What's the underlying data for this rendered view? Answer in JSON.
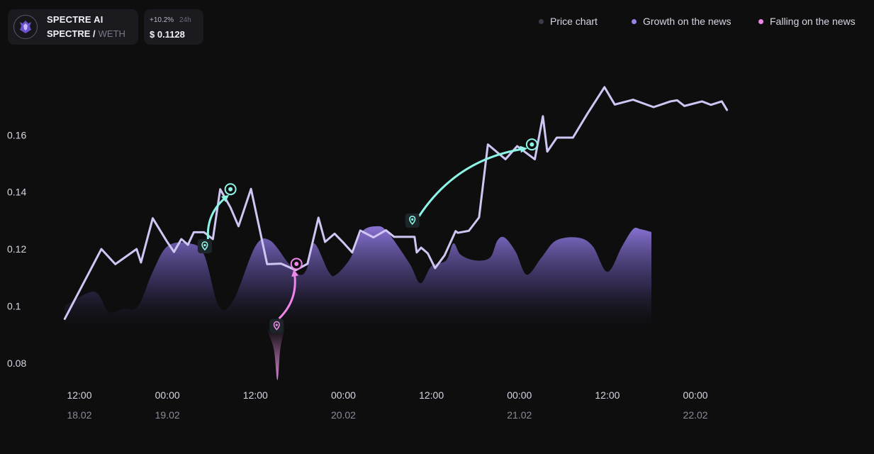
{
  "token": {
    "name": "SPECTRE AI",
    "base": "SPECTRE /",
    "quote": "WETH",
    "logo_icon": "wolf-shield-icon"
  },
  "price": {
    "change": "+10.2%",
    "period": "24h",
    "value": "$ 0.1128"
  },
  "legend": [
    {
      "label": "Price chart",
      "color": "#3d3a4c"
    },
    {
      "label": "Growth on the news",
      "color": "#9a82ea"
    },
    {
      "label": "Falling on the news",
      "color": "#ee86e8"
    }
  ],
  "colors": {
    "price_line": "#cfc6f4",
    "growth_arrow": "#8ef5e6",
    "fall_arrow": "#ee86e8",
    "area": "#8f78de",
    "dip": "#e58ee0"
  },
  "chart_data": {
    "type": "line",
    "title": "",
    "xlabel": "",
    "ylabel": "",
    "ylim": [
      0.07,
      0.18
    ],
    "xlim": [
      0,
      104
    ],
    "y_ticks": [
      0.16,
      0.14,
      0.12,
      0.1,
      0.08
    ],
    "y_tick_labels": [
      "0.16",
      "0.14",
      "0.12",
      "0.1",
      "0.08"
    ],
    "x_ticks": [
      {
        "x": 0,
        "time": "12:00",
        "date": "18.02"
      },
      {
        "x": 12,
        "time": "00:00",
        "date": "19.02"
      },
      {
        "x": 24,
        "time": "12:00",
        "date": ""
      },
      {
        "x": 36,
        "time": "00:00",
        "date": "20.02"
      },
      {
        "x": 48,
        "time": "12:00",
        "date": ""
      },
      {
        "x": 60,
        "time": "00:00",
        "date": "21.02"
      },
      {
        "x": 72,
        "time": "12:00",
        "date": ""
      },
      {
        "x": 84,
        "time": "00:00",
        "date": "22.02"
      }
    ],
    "grid": false,
    "legend_position": "top-right",
    "series": [
      {
        "name": "Price chart",
        "x": [
          -2.0,
          3.0,
          4.9,
          7.8,
          8.4,
          10.0,
          11.9,
          12.9,
          13.9,
          14.8,
          15.6,
          17.0,
          18.2,
          19.2,
          20.6,
          21.7,
          23.4,
          25.6,
          27.5,
          29.5,
          31.1,
          32.6,
          33.5,
          34.8,
          35.9,
          37.2,
          38.3,
          40.1,
          41.8,
          42.9,
          45.7,
          46.0,
          46.6,
          47.5,
          48.5,
          49.8,
          51.3,
          51.6,
          53.1,
          54.5,
          55.7,
          58.1,
          59.7,
          62.1,
          63.2,
          63.8,
          65.1,
          67.3,
          69.3,
          71.6,
          73.0,
          75.5,
          78.3,
          80.6,
          81.5,
          82.5,
          84.9,
          86.1,
          87.6,
          88.3
        ],
        "y": [
          0.0955,
          0.12,
          0.1147,
          0.12,
          0.1153,
          0.1308,
          0.1228,
          0.119,
          0.1235,
          0.1215,
          0.1259,
          0.1259,
          0.1235,
          0.141,
          0.1346,
          0.128,
          0.1411,
          0.1147,
          0.1149,
          0.1126,
          0.1148,
          0.131,
          0.1225,
          0.1254,
          0.1225,
          0.1188,
          0.1265,
          0.1241,
          0.1266,
          0.1243,
          0.1243,
          0.1188,
          0.1205,
          0.1185,
          0.1133,
          0.1178,
          0.1263,
          0.1257,
          0.1264,
          0.1311,
          0.1567,
          0.1515,
          0.1561,
          0.1515,
          0.1666,
          0.1542,
          0.1591,
          0.1591,
          0.1676,
          0.1768,
          0.1707,
          0.1724,
          0.1698,
          0.1718,
          0.1722,
          0.1702,
          0.1718,
          0.1706,
          0.1718,
          0.1688
        ]
      },
      {
        "name": "Growth on the news",
        "x": [
          -2,
          2,
          4,
          6,
          8,
          10,
          12,
          15,
          17,
          19,
          21,
          24,
          26,
          28.5,
          30,
          31,
          32,
          34,
          35,
          37,
          38.5,
          40.5,
          42,
          45,
          46.5,
          48,
          50,
          51,
          52,
          54,
          56,
          57,
          58,
          59.5,
          61,
          63,
          65,
          68,
          70,
          72,
          74,
          75.5,
          76.5,
          78
        ],
        "y": [
          0.1,
          0.105,
          0.098,
          0.099,
          0.1,
          0.112,
          0.121,
          0.122,
          0.118,
          0.1,
          0.102,
          0.121,
          0.123,
          0.115,
          0.111,
          0.113,
          0.122,
          0.112,
          0.111,
          0.117,
          0.126,
          0.128,
          0.126,
          0.115,
          0.108,
          0.114,
          0.116,
          0.122,
          0.118,
          0.116,
          0.117,
          0.123,
          0.124,
          0.119,
          0.111,
          0.117,
          0.123,
          0.124,
          0.121,
          0.112,
          0.121,
          0.127,
          0.127,
          0.126
        ]
      },
      {
        "name": "Falling on the news",
        "x": [
          25.5,
          26.5,
          27,
          27.4,
          28
        ],
        "y": [
          0.092,
          0.085,
          0.074,
          0.085,
          0.092
        ]
      }
    ],
    "annotations": [
      {
        "kind": "growth",
        "from": [
          17.1,
          0.121
        ],
        "to": [
          20.6,
          0.141
        ]
      },
      {
        "kind": "fall",
        "from": [
          26.9,
          0.093
        ],
        "to": [
          29.6,
          0.1148
        ]
      },
      {
        "kind": "growth",
        "from": [
          45.4,
          0.13
        ],
        "to": [
          61.7,
          0.1567
        ]
      }
    ]
  }
}
